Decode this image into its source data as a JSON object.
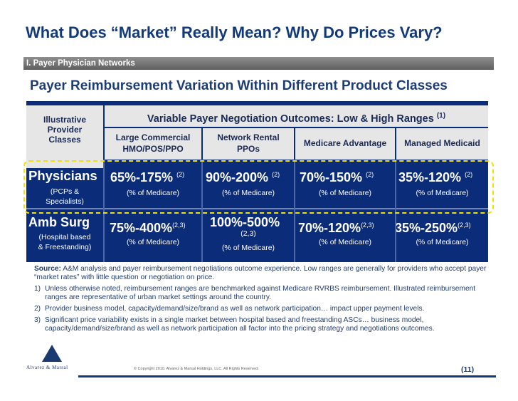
{
  "title": "What Does “Market” Really Mean? Why Do Prices Vary?",
  "section": "I.  Payer Physician Networks",
  "subtitle": "Payer Reimbursement Variation Within Different Product Classes",
  "table": {
    "corner": [
      "Illustrative",
      "Provider",
      "Classes"
    ],
    "top_header": "Variable Payer Negotiation Outcomes: Low & High Ranges",
    "top_header_note": "(1)",
    "columns": [
      [
        "Large Commercial",
        "HMO/POS/PPO"
      ],
      [
        "Network Rental",
        "PPOs"
      ],
      [
        "Medicare Advantage"
      ],
      [
        "Managed Medicaid"
      ]
    ],
    "rows": [
      {
        "label": "Physicians",
        "sublabel": [
          "(PCPs &",
          "Specialists)"
        ],
        "cells": [
          {
            "value": "65%-175%",
            "note": "(2)",
            "sub": "(% of  Medicare)"
          },
          {
            "value": "90%-200%",
            "note": "(2)",
            "sub": "(% of  Medicare)"
          },
          {
            "value": "70%-150%",
            "note": "(2)",
            "sub": "(% of  Medicare)"
          },
          {
            "value": "35%-120%",
            "note": "(2)",
            "sub": "(% of Medicare)"
          }
        ]
      },
      {
        "label": "Amb Surg",
        "sublabel": [
          "(Hospital based",
          "& Freestanding)"
        ],
        "cells": [
          {
            "value": "75%-400%",
            "note": "(2,3)",
            "sub": "(% of Medicare)"
          },
          {
            "value": "100%-500%",
            "note": "(2,3)",
            "sub": "(% of Medicare)"
          },
          {
            "value": "70%-120%",
            "note": "(2,3)",
            "sub": "(% of Medicare)"
          },
          {
            "value": "35%-250%",
            "note": "(2,3)",
            "sub": "(% of Medicare)"
          }
        ]
      }
    ]
  },
  "notes": {
    "source_label": "Source:",
    "source_text": " A&M analysis and payer reimbursement negotiations outcome experience.  Low ranges are generally for providers who accept  payer “market rates” with little question or negotiation on price.",
    "items": [
      {
        "num": "1)",
        "text": "Unless otherwise noted, reimbursement ranges are benchmarked against Medicare RVRBS reimbursement.  Illustrated reimbursement ranges are representative of urban market settings around the country."
      },
      {
        "num": "2)",
        "text": "Provider business model, capacity/demand/size/brand as well as network participation… impact upper payment levels."
      },
      {
        "num": "3)",
        "text": "Significant  price variability exists in a single market between hospital based and freestanding ASCs… business model, capacity/demand/size/brand as well as network participation all factor into the pricing strategy and negotiations outcomes."
      }
    ]
  },
  "footer": {
    "logo": "Alvarez & Marsal",
    "copyright": "© Copyright 2010. Alvarez & Marsal Holdings, LLC. All Rights Reserved.",
    "page": "(11)"
  }
}
